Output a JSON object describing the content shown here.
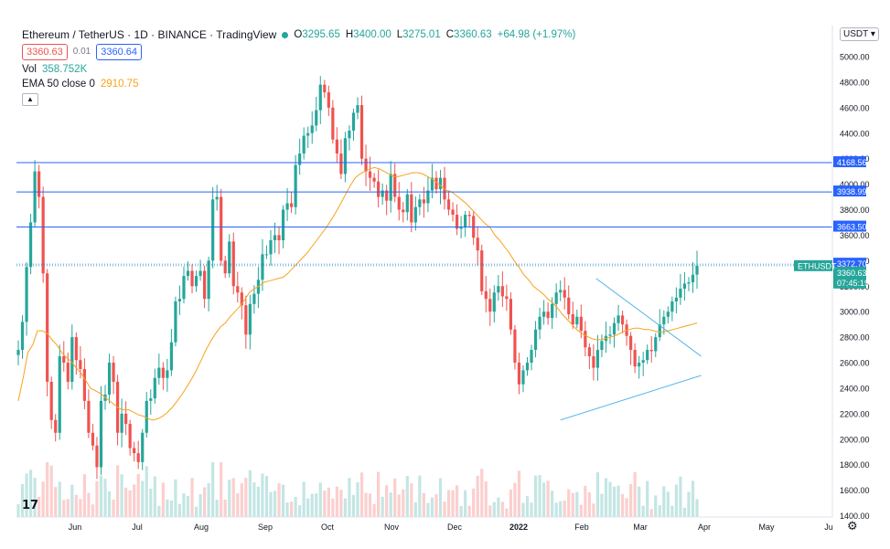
{
  "header": {
    "symbol_title": "Ethereum / TetherUS · 1D · BINANCE · TradingView",
    "ohlc": [
      {
        "key": "O",
        "value": "3295.65"
      },
      {
        "key": "H",
        "value": "3400.00"
      },
      {
        "key": "L",
        "value": "3275.01"
      },
      {
        "key": "C",
        "value": "3360.63"
      },
      {
        "key": "",
        "value": "+64.98 (+1.97%)"
      }
    ],
    "bid": "3360.63",
    "spread": "0.01",
    "ask": "3360.64",
    "volume_label": "Vol",
    "volume_value": "358.752K",
    "ema_label": "EMA 50 close 0",
    "ema_value": "2910.75",
    "currency": "USDT"
  },
  "colors": {
    "up": "#26a69a",
    "down": "#ef5350",
    "ema": "#f7a21b",
    "hline": "#2962ff",
    "trendline": "#4fb3e8",
    "last_price": "#26a69a"
  },
  "chart_data": {
    "type": "candlestick",
    "symbol": "ETHUSDT",
    "x_axis_labels": [
      "Jun",
      "Jul",
      "Aug",
      "Sep",
      "Oct",
      "Nov",
      "Dec",
      "2022",
      "Feb",
      "Mar",
      "Apr",
      "May",
      "Ju"
    ],
    "y_ticks": [
      1400,
      1600,
      1800,
      2000,
      2200,
      2400,
      2600,
      2800,
      3000,
      3200,
      3400,
      3600,
      3800,
      4000,
      4200,
      4400,
      4600,
      4800,
      5000
    ],
    "ylim": [
      1340,
      5080
    ],
    "close_series": [
      2700,
      2920,
      3350,
      3700,
      4100,
      3900,
      3300,
      2450,
      2150,
      2050,
      2650,
      2600,
      2450,
      2800,
      2620,
      2550,
      2300,
      2050,
      1950,
      1780,
      2300,
      2350,
      2600,
      2450,
      2050,
      2200,
      2120,
      1930,
      1890,
      1820,
      2050,
      2300,
      2320,
      2480,
      2560,
      2480,
      2540,
      2760,
      3080,
      3100,
      3280,
      3320,
      3200,
      3280,
      3320,
      3100,
      3400,
      3880,
      3900,
      3400,
      3300,
      3550,
      3200,
      3150,
      3050,
      2820,
      3060,
      3140,
      3250,
      3450,
      3450,
      3560,
      3600,
      3560,
      3800,
      3850,
      3820,
      4150,
      4240,
      4380,
      4400,
      4460,
      4580,
      4780,
      4720,
      4600,
      4350,
      4240,
      4080,
      4360,
      4420,
      4560,
      4620,
      4200,
      4100,
      4050,
      4020,
      3900,
      3950,
      3870,
      4080,
      3900,
      3800,
      3780,
      3920,
      3700,
      3820,
      3880,
      3850,
      3950,
      4050,
      3960,
      4050,
      3880,
      3800,
      3760,
      3650,
      3660,
      3760,
      3750,
      3580,
      3480,
      3160,
      3100,
      3000,
      3150,
      3200,
      3120,
      3100,
      2860,
      2600,
      2430,
      2540,
      2600,
      2700,
      2860,
      2960,
      3000,
      2950,
      3060,
      3150,
      3170,
      3110,
      2980,
      2900,
      2960,
      2850,
      2720,
      2650,
      2560,
      2700,
      2770,
      2810,
      2820,
      2910,
      2970,
      2900,
      2810,
      2700,
      2570,
      2600,
      2620,
      2700,
      2690,
      2800,
      2900,
      2960,
      3000,
      3080,
      3110,
      3180,
      3220,
      3230,
      3290,
      3360.63
    ],
    "ema50": [
      2300,
      2480,
      2680,
      2740,
      2850,
      2850,
      2830,
      2780,
      2740,
      2680,
      2640,
      2610,
      2560,
      2520,
      2460,
      2400,
      2380,
      2360,
      2330,
      2300,
      2270,
      2240,
      2230,
      2230,
      2210,
      2190,
      2180,
      2160,
      2150,
      2160,
      2180,
      2210,
      2250,
      2300,
      2350,
      2410,
      2470,
      2540,
      2620,
      2700,
      2770,
      2830,
      2880,
      2910,
      2960,
      3000,
      3040,
      3090,
      3150,
      3180,
      3200,
      3230,
      3240,
      3250,
      3260,
      3270,
      3300,
      3340,
      3380,
      3420,
      3460,
      3510,
      3560,
      3610,
      3660,
      3720,
      3780,
      3850,
      3920,
      3990,
      4050,
      4080,
      4100,
      4120,
      4130,
      4120,
      4100,
      4080,
      4060,
      4060,
      4070,
      4080,
      4090,
      4090,
      4080,
      4060,
      4040,
      4010,
      3980,
      3950,
      3940,
      3910,
      3880,
      3850,
      3810,
      3770,
      3730,
      3690,
      3660,
      3600,
      3560,
      3510,
      3460,
      3400,
      3350,
      3290,
      3250,
      3200,
      3170,
      3140,
      3100,
      3070,
      3030,
      2980,
      2940,
      2900,
      2860,
      2830,
      2810,
      2790,
      2780,
      2780,
      2790,
      2800,
      2810,
      2830,
      2850,
      2860,
      2870,
      2870,
      2860,
      2860,
      2850,
      2840,
      2840,
      2850,
      2860,
      2870,
      2880,
      2890,
      2900,
      2910.75
    ],
    "horizontal_levels": [
      4168.56,
      3938.99,
      3663.5,
      3372.7
    ],
    "last_price": "3360.63",
    "countdown": "07:45:19",
    "price_labels": [
      "4168.56",
      "3938.99",
      "3663.50",
      "3372.70",
      "3360.63"
    ],
    "trendlines": [
      {
        "x": [
          "2022-01-24",
          "2022-04-01"
        ],
        "y": [
          2150,
          2500
        ]
      },
      {
        "x": [
          "2022-02-10",
          "2022-04-01"
        ],
        "y": [
          3260,
          2650
        ]
      }
    ],
    "volume_shown": true,
    "grid": false
  }
}
